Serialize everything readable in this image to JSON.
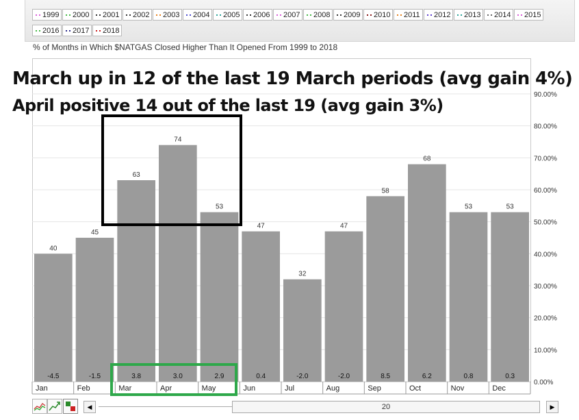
{
  "legend": [
    {
      "label": "1999",
      "color": "#d95cd9"
    },
    {
      "label": "2000",
      "color": "#44b944"
    },
    {
      "label": "2001",
      "color": "#333333"
    },
    {
      "label": "2002",
      "color": "#333333"
    },
    {
      "label": "2003",
      "color": "#e6801a"
    },
    {
      "label": "2004",
      "color": "#4a4ad0"
    },
    {
      "label": "2005",
      "color": "#2aa59a"
    },
    {
      "label": "2006",
      "color": "#333333"
    },
    {
      "label": "2007",
      "color": "#d95cd9"
    },
    {
      "label": "2008",
      "color": "#44b944"
    },
    {
      "label": "2009",
      "color": "#333333"
    },
    {
      "label": "2010",
      "color": "#8b1a1a"
    },
    {
      "label": "2011",
      "color": "#e6801a"
    },
    {
      "label": "2012",
      "color": "#5a3ad0"
    },
    {
      "label": "2013",
      "color": "#2aa59a"
    },
    {
      "label": "2014",
      "color": "#666666"
    },
    {
      "label": "2015",
      "color": "#d95cd9"
    },
    {
      "label": "2016",
      "color": "#44b944"
    },
    {
      "label": "2017",
      "color": "#2a2a8a"
    },
    {
      "label": "2018",
      "color": "#cc2222"
    }
  ],
  "subtitle": "% of Months in Which $NATGAS Closed Higher Than It Opened From 1999 to 2018",
  "annotations": {
    "line1": "March up in 12 of the last 19 March periods (avg gain 4%)",
    "line2": "April positive 14 out of the last 19 (avg gain 3%)"
  },
  "scrollbar": {
    "value": "20"
  },
  "chart_data": {
    "type": "bar",
    "categories": [
      "Jan",
      "Feb",
      "Mar",
      "Apr",
      "May",
      "Jun",
      "Jul",
      "Aug",
      "Sep",
      "Oct",
      "Nov",
      "Dec"
    ],
    "values": [
      40,
      45,
      63,
      74,
      53,
      47,
      32,
      47,
      58,
      68,
      53,
      53
    ],
    "value_labels": [
      "40",
      "45",
      "63",
      "74",
      "53",
      "47",
      "32",
      "47",
      "58",
      "68",
      "53",
      "53"
    ],
    "avg_labels": [
      "-4.5",
      "-1.5",
      "3.8",
      "3.0",
      "2.9",
      "0.4",
      "-2.0",
      "-2.0",
      "8.5",
      "6.2",
      "0.8",
      "0.3"
    ],
    "yticks": [
      "0.00%",
      "10.00%",
      "20.00%",
      "30.00%",
      "40.00%",
      "50.00%",
      "60.00%",
      "70.00%",
      "80.00%",
      "90.00%"
    ],
    "ylim": [
      0,
      90
    ],
    "axis_side": "right",
    "grid": true,
    "bar_color": "#9b9b9b"
  }
}
